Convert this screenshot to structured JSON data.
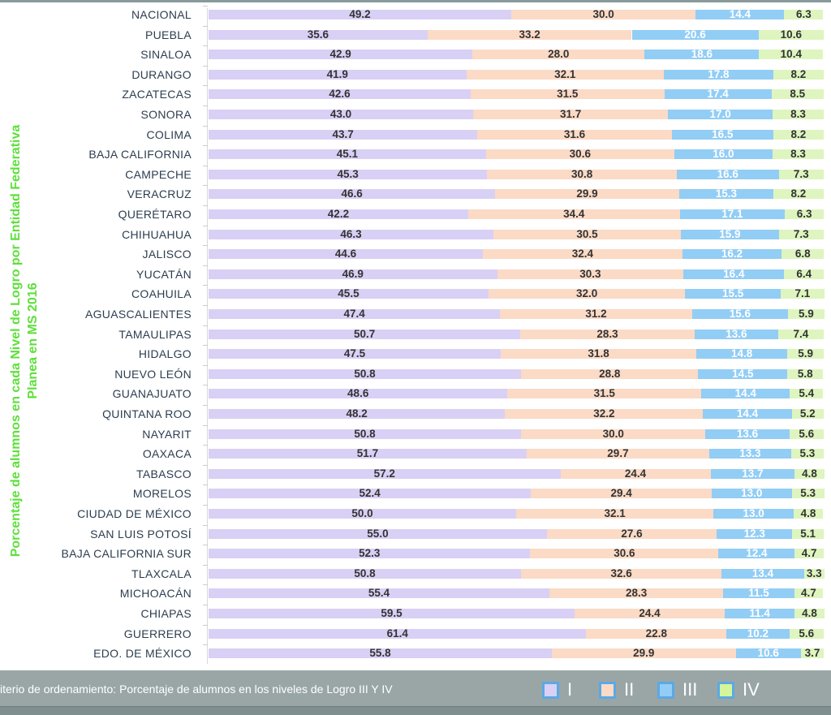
{
  "chart_data": {
    "type": "bar",
    "orientation": "horizontal",
    "stacked": true,
    "ylabel": "Porcentaje de alumnos en cada Nivel de Logro por Entidad Federativa Planea  en MS 2016",
    "xlim": [
      0,
      100
    ],
    "categories": [
      "NACIONAL",
      "PUEBLA",
      "SINALOA",
      "DURANGO",
      "ZACATECAS",
      "SONORA",
      "COLIMA",
      "BAJA CALIFORNIA",
      "CAMPECHE",
      "VERACRUZ",
      "QUERÉTARO",
      "CHIHUAHUA",
      "JALISCO",
      "YUCATÁN",
      "COAHUILA",
      "AGUASCALIENTES",
      "TAMAULIPAS",
      "HIDALGO",
      "NUEVO LEÓN",
      "GUANAJUATO",
      "QUINTANA ROO",
      "NAYARIT",
      "OAXACA",
      "TABASCO",
      "MORELOS",
      "CIUDAD DE MÉXICO",
      "SAN LUIS POTOSÍ",
      "BAJA CALIFORNIA SUR",
      "TLAXCALA",
      "MICHOACÁN",
      "CHIAPAS",
      "GUERRERO",
      "EDO. DE MÉXICO"
    ],
    "series": [
      {
        "name": "I",
        "color": "#d9d0f5",
        "label_color": "#333333",
        "values": [
          49.2,
          35.6,
          42.9,
          41.9,
          42.6,
          43.0,
          43.7,
          45.1,
          45.3,
          46.6,
          42.2,
          46.3,
          44.6,
          46.9,
          45.5,
          47.4,
          50.7,
          47.5,
          50.8,
          48.6,
          48.2,
          50.8,
          51.7,
          57.2,
          52.4,
          50.0,
          55.0,
          52.3,
          50.8,
          55.4,
          59.5,
          61.4,
          55.8
        ]
      },
      {
        "name": "II",
        "color": "#fbdac6",
        "label_color": "#333333",
        "values": [
          30.0,
          33.2,
          28.0,
          32.1,
          31.5,
          31.7,
          31.6,
          30.6,
          30.8,
          29.9,
          34.4,
          30.5,
          32.4,
          30.3,
          32.0,
          31.2,
          28.3,
          31.8,
          28.8,
          31.5,
          32.2,
          30.0,
          29.7,
          24.4,
          29.4,
          32.1,
          27.6,
          30.6,
          32.6,
          28.3,
          24.4,
          22.8,
          29.9
        ]
      },
      {
        "name": "III",
        "color": "#92cdf5",
        "label_color": "#ffffff",
        "values": [
          14.4,
          20.6,
          18.6,
          17.8,
          17.4,
          17.0,
          16.5,
          16.0,
          16.6,
          15.3,
          17.1,
          15.9,
          16.2,
          16.4,
          15.5,
          15.6,
          13.6,
          14.8,
          14.5,
          14.4,
          14.4,
          13.6,
          13.3,
          13.7,
          13.0,
          13.0,
          12.3,
          12.4,
          13.4,
          11.5,
          11.4,
          10.2,
          10.6
        ]
      },
      {
        "name": "IV",
        "color": "#def5bf",
        "label_color": "#333333",
        "values": [
          6.3,
          10.6,
          10.4,
          8.2,
          8.5,
          8.3,
          8.2,
          8.3,
          7.3,
          8.2,
          6.3,
          7.3,
          6.8,
          6.4,
          7.1,
          5.9,
          7.4,
          5.9,
          5.8,
          5.4,
          5.2,
          5.6,
          5.3,
          4.8,
          5.3,
          4.8,
          5.1,
          4.7,
          3.3,
          4.7,
          4.8,
          5.6,
          3.7
        ]
      }
    ],
    "legend": "bottom-right"
  },
  "footer": {
    "criterion": "iterio de ordenamiento:  Porcentaje de alumnos en  los niveles  de Logro III Y IV"
  },
  "legend_swatch_colors": {
    "I": "#d9d0f5",
    "II": "#fbdac6",
    "III": "#92cdf5",
    "IV": "#d4f59a"
  }
}
